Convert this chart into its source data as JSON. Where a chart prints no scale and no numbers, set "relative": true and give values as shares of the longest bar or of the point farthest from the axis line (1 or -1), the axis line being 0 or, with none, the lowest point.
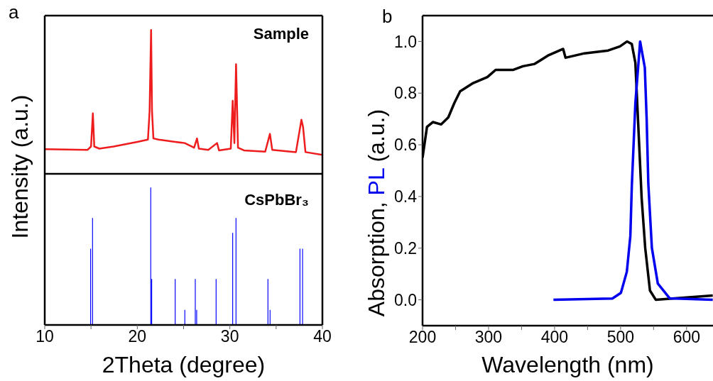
{
  "chart_data": [
    {
      "type": "line",
      "relative": true,
      "tick_labels": false,
      "xlim": [
        10,
        40
      ],
      "ylabel": "Intensity (a.u.)",
      "annotations": [
        "a"
      ],
      "series": [
        {
          "name": "Sample",
          "color": "#ee1c1c",
          "x": [
            10.0,
            14.63,
            15.0,
            15.2,
            15.35,
            15.9,
            17.44,
            20.0,
            21.15,
            21.33,
            21.49,
            21.59,
            21.74,
            22.3,
            24.1,
            25.12,
            26.14,
            26.45,
            26.65,
            27.67,
            28.62,
            28.83,
            30.1,
            30.31,
            30.49,
            30.67,
            30.88,
            31.52,
            33.82,
            34.2,
            34.33,
            34.58,
            37.14,
            37.6,
            37.73,
            37.91,
            38.17,
            40.0
          ],
          "values": [
            0.171,
            0.167,
            0.19,
            0.42,
            0.19,
            0.175,
            0.19,
            0.222,
            0.238,
            0.437,
            1.0,
            0.437,
            0.246,
            0.238,
            0.222,
            0.214,
            0.182,
            0.246,
            0.175,
            0.167,
            0.214,
            0.163,
            0.175,
            0.508,
            0.214,
            0.762,
            0.182,
            0.163,
            0.154,
            0.246,
            0.278,
            0.167,
            0.151,
            0.325,
            0.376,
            0.325,
            0.151,
            0.132
          ]
        }
      ]
    },
    {
      "type": "bar",
      "relative": true,
      "tick_labels": "x",
      "xlim": [
        10,
        40
      ],
      "xticks": [
        10,
        {
          "value": 15,
          "label": null
        },
        20,
        {
          "value": 25,
          "label": null
        },
        30,
        {
          "value": 35,
          "label": null
        },
        40
      ],
      "xlabel": "2Theta (degree)",
      "x": [
        14.96,
        15.17,
        21.46,
        21.56,
        24.1,
        25.14,
        26.27,
        26.42,
        28.52,
        30.31,
        30.67,
        34.12,
        34.35,
        37.58,
        37.86
      ],
      "series": [
        {
          "name": "CsPbBr₃",
          "color": "#0000ff",
          "values": [
            0.555,
            0.779,
            1.0,
            0.334,
            0.334,
            0.11,
            0.334,
            0.11,
            0.334,
            0.67,
            0.779,
            0.334,
            0.11,
            0.555,
            0.555
          ]
        }
      ]
    },
    {
      "type": "line",
      "xlim": [
        200,
        640
      ],
      "xticks": [
        200,
        {
          "value": 250,
          "label": null
        },
        300,
        {
          "value": 350,
          "label": null
        },
        400,
        {
          "value": 450,
          "label": null
        },
        500,
        {
          "value": 550,
          "label": null
        },
        600
      ],
      "ylim": [
        -0.1,
        1.1
      ],
      "yticks": [
        {
          "value": 0,
          "label": "0.0"
        },
        {
          "value": 0.2,
          "label": "0.2"
        },
        {
          "value": 0.4,
          "label": "0.4"
        },
        {
          "value": 0.6,
          "label": "0.6"
        },
        {
          "value": 0.8,
          "label": "0.8"
        },
        {
          "value": 1,
          "label": "1.0"
        }
      ],
      "xlabel": "Wavelength (nm)",
      "ylabel": "Absorption, PL (a.u.)",
      "annotations": [
        "b"
      ],
      "series": [
        {
          "color": "#000000",
          "x": [
            200,
            206.7,
            215.6,
            228.2,
            239,
            248,
            256.9,
            276.7,
            298.2,
            310.7,
            337.6,
            352,
            369.9,
            389.7,
            413,
            416.6,
            445.3,
            481.2,
            499.1,
            509.9,
            517,
            522.4,
            531.9,
            537.3,
            544.5,
            553.4,
            639.6
          ],
          "values": [
            0.55,
            0.669,
            0.688,
            0.679,
            0.706,
            0.761,
            0.807,
            0.839,
            0.862,
            0.89,
            0.89,
            0.904,
            0.913,
            0.945,
            0.971,
            0.937,
            0.954,
            0.965,
            0.981,
            1.0,
            0.99,
            0.917,
            0.394,
            0.201,
            0.036,
            0,
            0.017
          ]
        },
        {
          "color": "#0000ee",
          "x": [
            398.3,
            487.6,
            500.5,
            509.5,
            514.8,
            517,
            522.4,
            529.6,
            536.7,
            539.5,
            542,
            547.4,
            556.4,
            574.3,
            639.6
          ],
          "values": [
            0,
            0.005,
            0.027,
            0.109,
            0.247,
            0.44,
            0.761,
            1.0,
            0.899,
            0.7,
            0.45,
            0.201,
            0.063,
            0.006,
            0
          ]
        }
      ]
    }
  ]
}
